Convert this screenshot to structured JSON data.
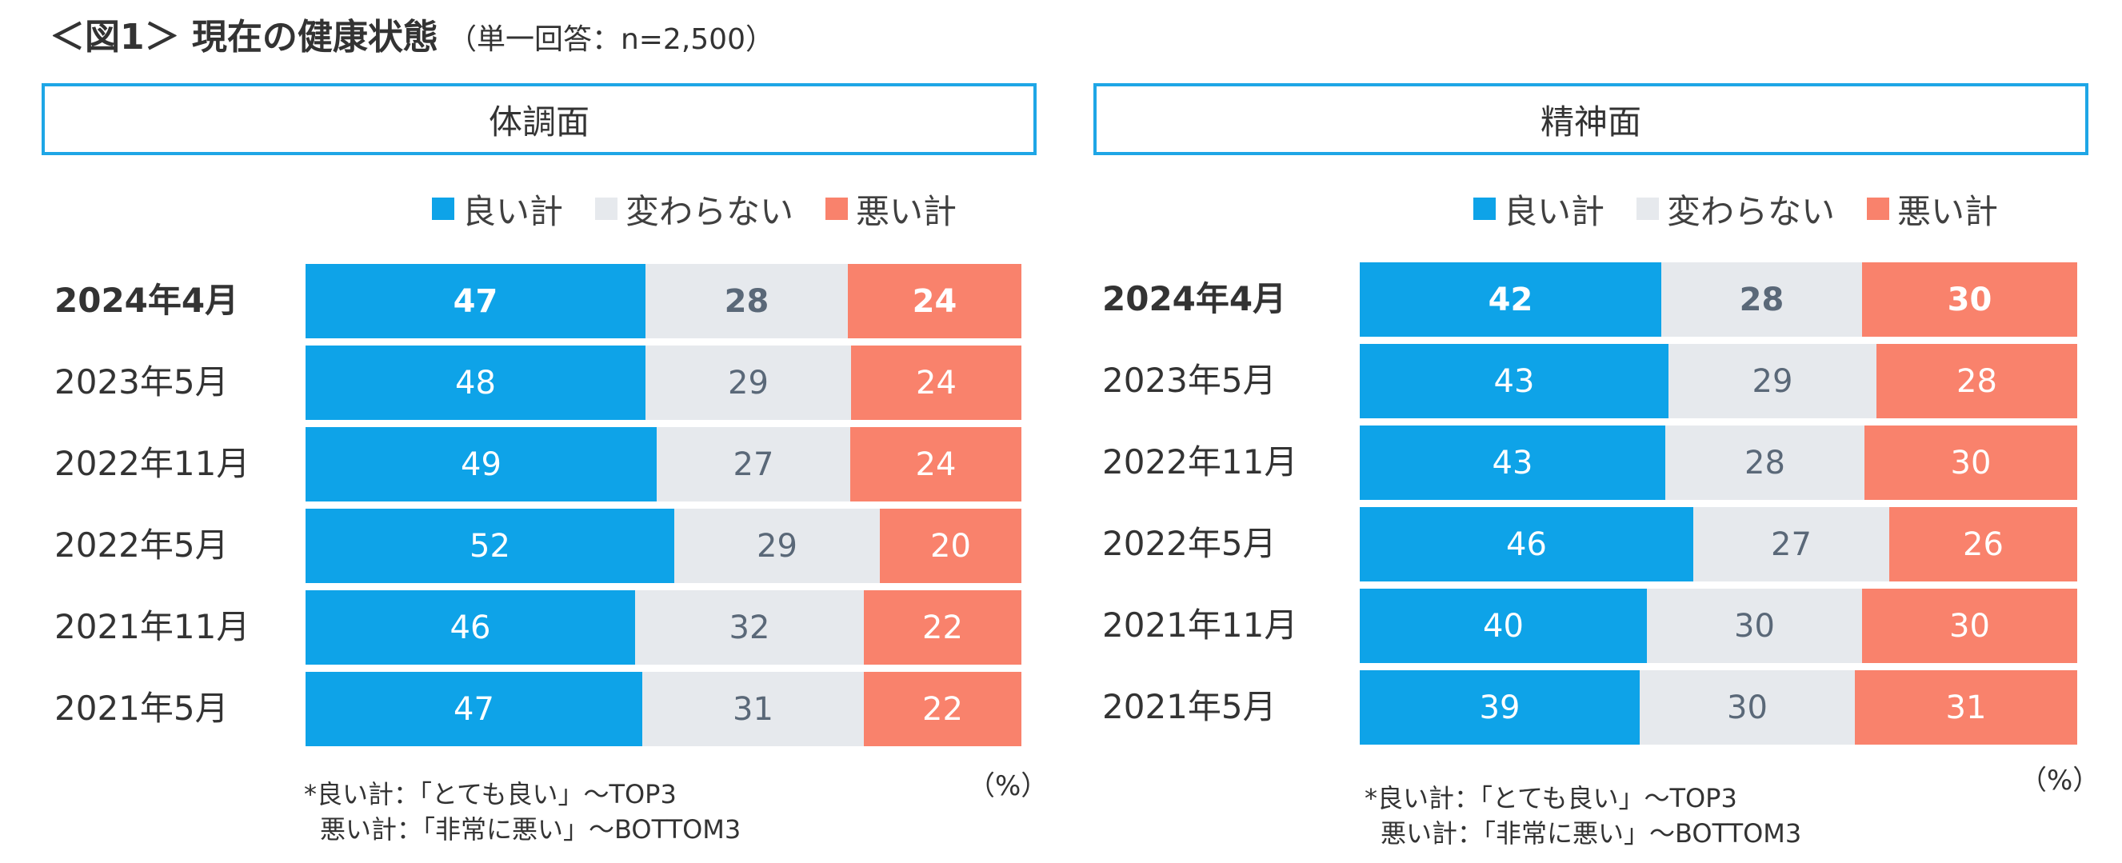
{
  "title": {
    "main": "＜図1＞ 現在の健康状態",
    "sub": "（単一回答：n=2,500）"
  },
  "colors": {
    "good": "#0ea3e8",
    "neutral": "#e6e9ed",
    "bad": "#f9826c",
    "frame": "#1ea6e6"
  },
  "legend": {
    "good": "良い計",
    "neutral": "変わらない",
    "bad": "悪い計"
  },
  "unit": "（%）",
  "notes": [
    "*良い計：「とても良い」～TOP3",
    "悪い計：「非常に悪い」～BOTTOM3"
  ],
  "chart_data": [
    {
      "type": "bar",
      "orientation": "horizontal",
      "stacked": true,
      "title": "体調面",
      "categories": [
        "2024年4月",
        "2023年5月",
        "2022年11月",
        "2022年5月",
        "2021年11月",
        "2021年5月"
      ],
      "series": [
        {
          "name": "良い計",
          "values": [
            47,
            48,
            49,
            52,
            46,
            47
          ]
        },
        {
          "name": "変わらない",
          "values": [
            28,
            29,
            27,
            29,
            32,
            31
          ]
        },
        {
          "name": "悪い計",
          "values": [
            24,
            24,
            24,
            20,
            22,
            22
          ]
        }
      ],
      "ylabel": "",
      "xlabel": "（%）"
    },
    {
      "type": "bar",
      "orientation": "horizontal",
      "stacked": true,
      "title": "精神面",
      "categories": [
        "2024年4月",
        "2023年5月",
        "2022年11月",
        "2022年5月",
        "2021年11月",
        "2021年5月"
      ],
      "series": [
        {
          "name": "良い計",
          "values": [
            42,
            43,
            43,
            46,
            40,
            39
          ]
        },
        {
          "name": "変わらない",
          "values": [
            28,
            29,
            28,
            27,
            30,
            30
          ]
        },
        {
          "name": "悪い計",
          "values": [
            30,
            28,
            30,
            26,
            30,
            31
          ]
        }
      ],
      "ylabel": "",
      "xlabel": "（%）"
    }
  ]
}
